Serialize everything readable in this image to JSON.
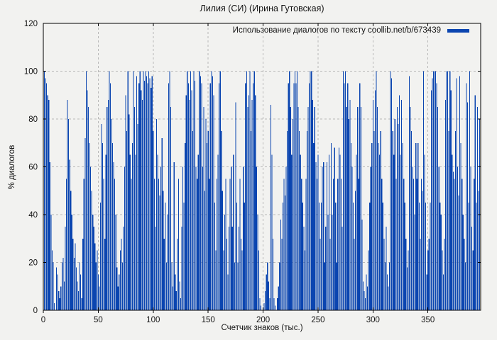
{
  "chart_data": {
    "type": "bar",
    "style": "impulses",
    "title": "Лилия (СИ) (Ирина Гутовская)",
    "xlabel": "Счетчик знаков (тыс.)",
    "ylabel": "% диалогов",
    "legend": [
      "Использование диалогов по тексту coollib.net/b/673439"
    ],
    "legend_position": "top-right-inside",
    "grid": true,
    "xlim": [
      0,
      398
    ],
    "ylim": [
      0,
      120
    ],
    "xticks": [
      0,
      50,
      100,
      150,
      200,
      250,
      300,
      350
    ],
    "yticks": [
      0,
      20,
      40,
      60,
      80,
      100,
      120
    ],
    "x_step": 1,
    "bar_color": "#0b45b0",
    "grid_color": "#b8b8b8",
    "background_color": "#f2f2f0",
    "values": [
      100,
      100,
      97,
      95,
      90,
      88,
      62,
      40,
      25,
      20,
      3,
      0,
      18,
      15,
      8,
      5,
      10,
      20,
      22,
      12,
      35,
      55,
      88,
      80,
      63,
      50,
      40,
      30,
      22,
      28,
      18,
      12,
      8,
      20,
      15,
      5,
      30,
      55,
      72,
      100,
      92,
      85,
      70,
      60,
      50,
      40,
      35,
      28,
      20,
      25,
      15,
      10,
      45,
      78,
      70,
      55,
      30,
      65,
      85,
      88,
      100,
      95,
      80,
      70,
      62,
      55,
      40,
      18,
      10,
      15,
      25,
      30,
      20,
      35,
      60,
      90,
      75,
      100,
      82,
      65,
      55,
      70,
      100,
      85,
      65,
      98,
      78,
      95,
      100,
      92,
      88,
      100,
      96,
      100,
      98,
      95,
      100,
      97,
      93,
      98,
      75,
      55,
      35,
      80,
      65,
      55,
      48,
      60,
      72,
      50,
      30,
      45,
      20,
      40,
      95,
      100,
      85,
      20,
      10,
      62,
      15,
      8,
      30,
      55,
      12,
      5,
      35,
      60,
      45,
      70,
      90,
      100,
      95,
      88,
      100,
      92,
      75,
      100,
      96,
      60,
      55,
      65,
      100,
      98,
      95,
      60,
      85,
      50,
      80,
      70,
      75,
      55,
      95,
      100,
      98,
      90,
      45,
      25,
      55,
      65,
      95,
      100,
      75,
      50,
      25,
      40,
      55,
      30,
      15,
      35,
      55,
      60,
      35,
      65,
      20,
      87,
      45,
      20,
      35,
      55,
      30,
      25,
      60,
      45,
      95,
      100,
      85,
      90,
      100,
      75,
      88,
      95,
      100,
      90,
      60,
      40,
      25,
      5,
      2,
      0,
      0,
      3,
      8,
      15,
      20,
      12,
      5,
      86,
      65,
      30,
      5,
      2,
      0,
      5,
      10,
      20,
      38,
      30,
      45,
      55,
      48,
      60,
      75,
      95,
      100,
      85,
      65,
      80,
      95,
      100,
      95,
      100,
      85,
      75,
      65,
      55,
      45,
      35,
      25,
      55,
      75,
      85,
      95,
      100,
      100,
      88,
      70,
      85,
      62,
      55,
      65,
      45,
      30,
      45,
      60,
      62,
      20,
      35,
      62,
      40,
      65,
      30,
      70,
      40,
      55,
      68,
      45,
      20,
      55,
      68,
      65,
      55,
      35,
      100,
      95,
      100,
      85,
      95,
      80,
      88,
      70,
      60,
      45,
      30,
      50,
      65,
      85,
      55,
      95,
      85,
      38,
      12,
      8,
      5,
      15,
      10,
      25,
      45,
      60,
      70,
      88,
      75,
      92,
      100,
      85,
      70,
      65,
      75,
      55,
      45,
      30,
      20,
      35,
      15,
      10,
      20,
      100,
      97,
      75,
      65,
      80,
      55,
      85,
      78,
      90,
      65,
      88,
      70,
      55,
      45,
      30,
      18,
      25,
      98,
      85,
      75,
      60,
      55,
      40,
      70,
      55,
      70,
      45,
      30,
      55,
      50,
      100,
      65,
      45,
      15,
      25,
      30,
      45,
      92,
      97,
      100,
      100,
      100,
      95,
      85,
      60,
      45,
      40,
      25,
      15,
      30,
      88,
      100,
      100,
      75,
      100,
      92,
      65,
      58,
      55,
      75,
      97,
      60,
      48,
      98,
      70,
      55,
      40,
      30,
      20,
      95,
      87,
      45,
      100,
      60,
      35,
      25,
      55,
      90,
      45,
      85,
      50,
      80,
      72
    ]
  }
}
